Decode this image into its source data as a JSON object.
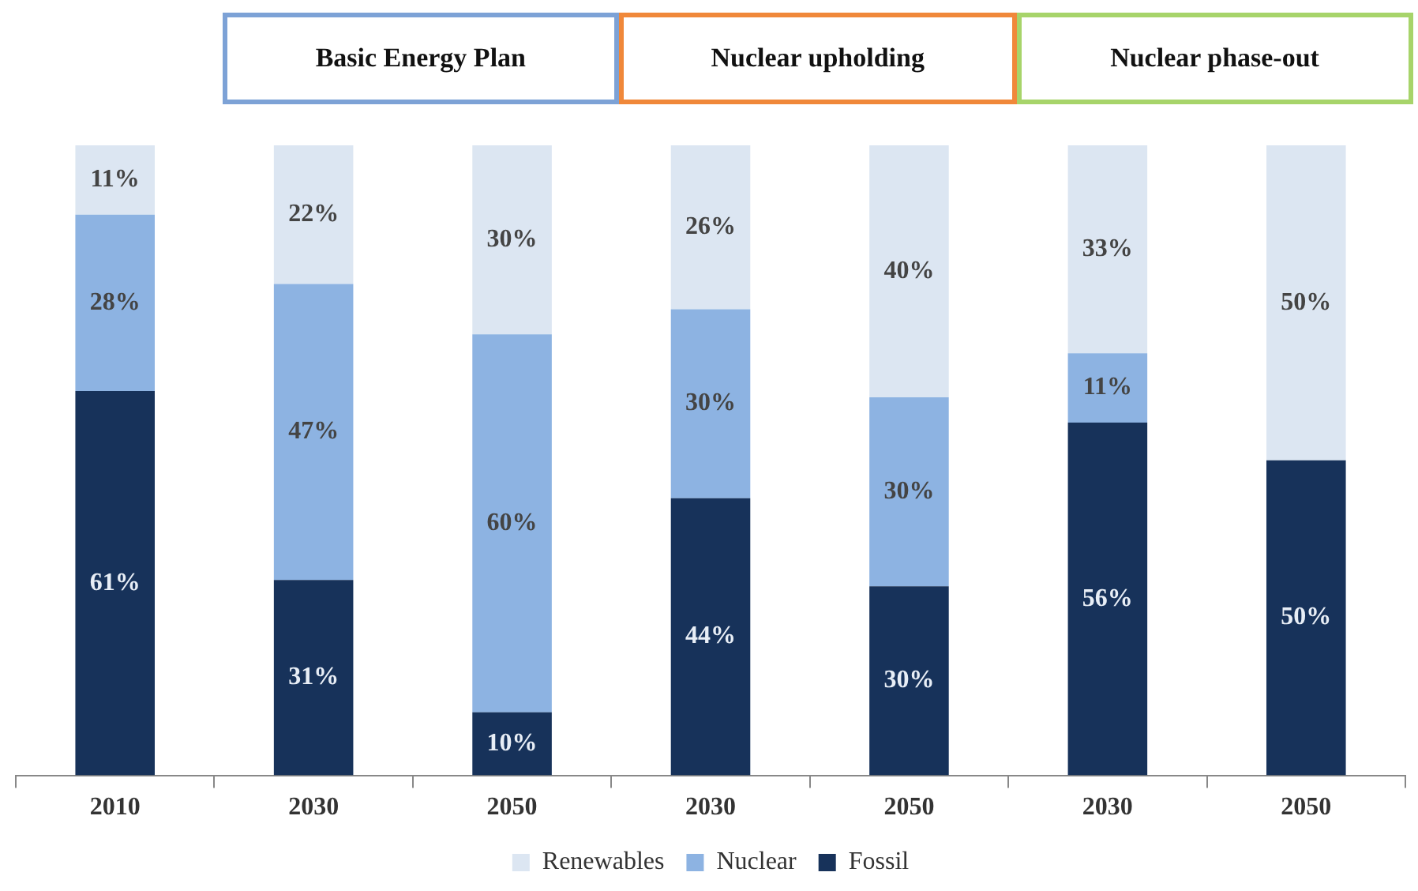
{
  "chart_data": {
    "type": "bar",
    "stacked": true,
    "categories": [
      "2010",
      "2030",
      "2050",
      "2030",
      "2050",
      "2030",
      "2050"
    ],
    "series": [
      {
        "name": "Fossil",
        "color": "#17325a",
        "values": [
          61,
          31,
          10,
          44,
          30,
          56,
          50
        ],
        "value_labels": [
          "61%",
          "31%",
          "10%",
          "44%",
          "30%",
          "56%",
          "50%"
        ]
      },
      {
        "name": "Nuclear",
        "color": "#8db3e2",
        "values": [
          28,
          47,
          60,
          30,
          30,
          11,
          0
        ],
        "value_labels": [
          "28%",
          "47%",
          "60%",
          "30%",
          "30%",
          "11%",
          null
        ]
      },
      {
        "name": "Renewables",
        "color": "#dce6f2",
        "values": [
          11,
          22,
          30,
          26,
          40,
          33,
          50
        ],
        "value_labels": [
          "11%",
          "22%",
          "30%",
          "26%",
          "40%",
          "33%",
          "50%"
        ]
      }
    ],
    "ylim": [
      0,
      100
    ],
    "tick_labels": "x",
    "legend": "bottom",
    "annotations": [
      "Basic Energy Plan",
      "Nuclear upholding",
      "Nuclear phase-out"
    ]
  }
}
